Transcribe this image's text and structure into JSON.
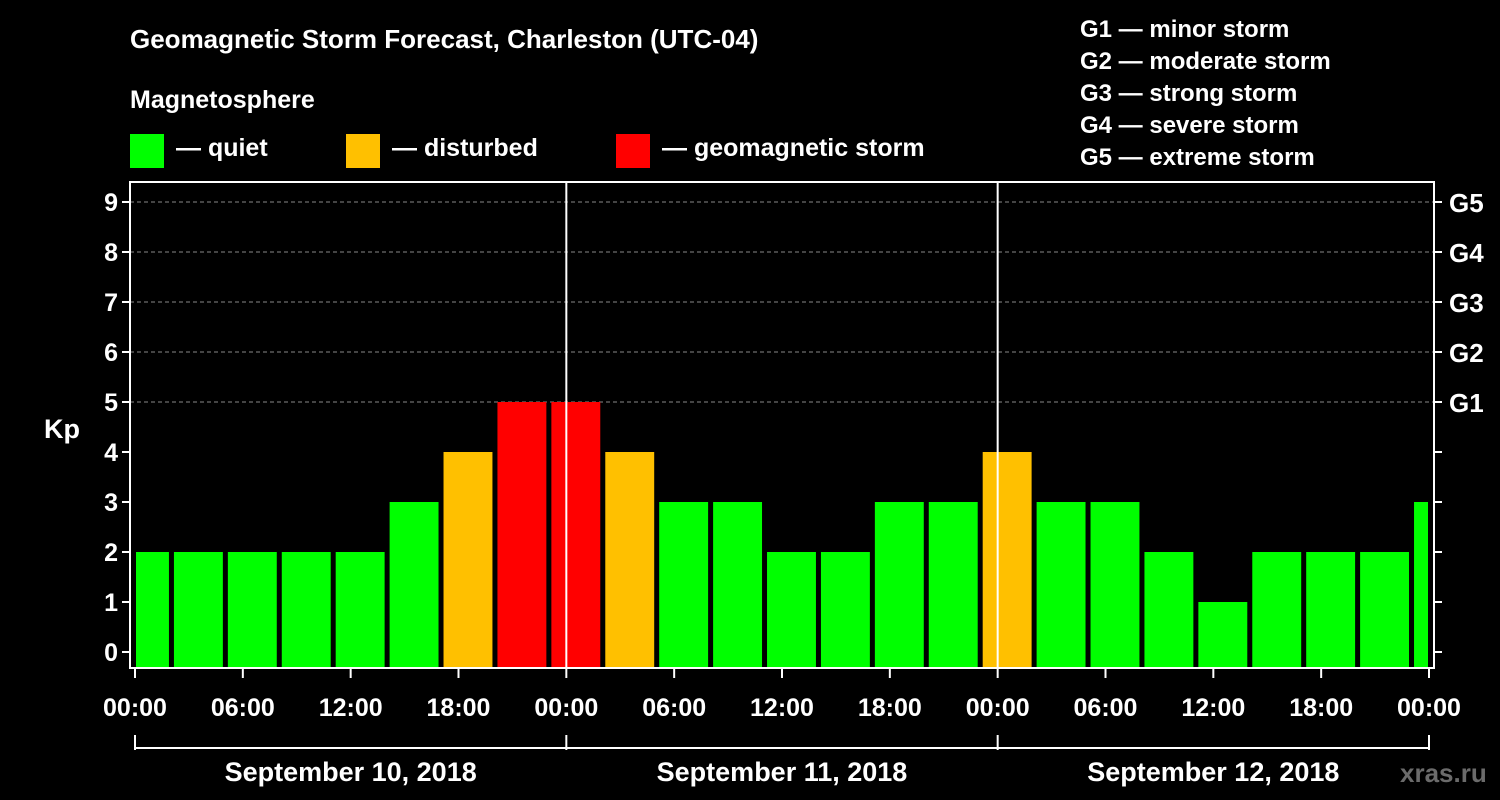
{
  "title": "Geomagnetic Storm Forecast, Charleston (UTC-04)",
  "magnetosphere": {
    "heading": "Magnetosphere",
    "items": [
      {
        "label": "— quiet",
        "color": "#00ff00"
      },
      {
        "label": "— disturbed",
        "color": "#ffc000"
      },
      {
        "label": "— geomagnetic storm",
        "color": "#ff0000"
      }
    ]
  },
  "g_scale": [
    {
      "level": "G1",
      "label": "G1 — minor storm"
    },
    {
      "level": "G2",
      "label": "G2 — moderate storm"
    },
    {
      "level": "G3",
      "label": "G3 — strong storm"
    },
    {
      "level": "G4",
      "label": "G4 — severe storm"
    },
    {
      "level": "G5",
      "label": "G5 — extreme storm"
    }
  ],
  "watermark": "xras.ru",
  "chart_data": {
    "type": "bar",
    "title": "Geomagnetic Storm Forecast, Charleston (UTC-04)",
    "ylabel": "Kp",
    "ylim": [
      0,
      9
    ],
    "y_ticks": [
      "0",
      "1",
      "2",
      "3",
      "4",
      "5",
      "6",
      "7",
      "8",
      "9"
    ],
    "right_axis": [
      {
        "kp": 5,
        "label": "G1"
      },
      {
        "kp": 6,
        "label": "G2"
      },
      {
        "kp": 7,
        "label": "G3"
      },
      {
        "kp": 8,
        "label": "G4"
      },
      {
        "kp": 9,
        "label": "G5"
      }
    ],
    "gridlines_at": [
      5,
      6,
      7,
      8,
      9
    ],
    "x_range_hours": [
      0,
      72
    ],
    "x_ticks": [
      "00:00",
      "06:00",
      "12:00",
      "18:00",
      "00:00",
      "06:00",
      "12:00",
      "18:00",
      "00:00",
      "06:00",
      "12:00",
      "18:00",
      "00:00"
    ],
    "days": [
      "September 10, 2018",
      "September 11, 2018",
      "September 12, 2018"
    ],
    "bars": [
      {
        "start": 0,
        "end": 2,
        "kp": 2,
        "color": "#00ff00"
      },
      {
        "start": 2,
        "end": 5,
        "kp": 2,
        "color": "#00ff00"
      },
      {
        "start": 5,
        "end": 8,
        "kp": 2,
        "color": "#00ff00"
      },
      {
        "start": 8,
        "end": 11,
        "kp": 2,
        "color": "#00ff00"
      },
      {
        "start": 11,
        "end": 14,
        "kp": 2,
        "color": "#00ff00"
      },
      {
        "start": 14,
        "end": 17,
        "kp": 3,
        "color": "#00ff00"
      },
      {
        "start": 17,
        "end": 20,
        "kp": 4,
        "color": "#ffc000"
      },
      {
        "start": 20,
        "end": 23,
        "kp": 5,
        "color": "#ff0000"
      },
      {
        "start": 23,
        "end": 26,
        "kp": 5,
        "color": "#ff0000"
      },
      {
        "start": 26,
        "end": 29,
        "kp": 4,
        "color": "#ffc000"
      },
      {
        "start": 29,
        "end": 32,
        "kp": 3,
        "color": "#00ff00"
      },
      {
        "start": 32,
        "end": 35,
        "kp": 3,
        "color": "#00ff00"
      },
      {
        "start": 35,
        "end": 38,
        "kp": 2,
        "color": "#00ff00"
      },
      {
        "start": 38,
        "end": 41,
        "kp": 2,
        "color": "#00ff00"
      },
      {
        "start": 41,
        "end": 44,
        "kp": 3,
        "color": "#00ff00"
      },
      {
        "start": 44,
        "end": 47,
        "kp": 3,
        "color": "#00ff00"
      },
      {
        "start": 47,
        "end": 50,
        "kp": 4,
        "color": "#ffc000"
      },
      {
        "start": 50,
        "end": 53,
        "kp": 3,
        "color": "#00ff00"
      },
      {
        "start": 53,
        "end": 56,
        "kp": 3,
        "color": "#00ff00"
      },
      {
        "start": 56,
        "end": 59,
        "kp": 2,
        "color": "#00ff00"
      },
      {
        "start": 59,
        "end": 62,
        "kp": 1,
        "color": "#00ff00"
      },
      {
        "start": 62,
        "end": 65,
        "kp": 2,
        "color": "#00ff00"
      },
      {
        "start": 65,
        "end": 68,
        "kp": 2,
        "color": "#00ff00"
      },
      {
        "start": 68,
        "end": 71,
        "kp": 2,
        "color": "#00ff00"
      },
      {
        "start": 71,
        "end": 72,
        "kp": 3,
        "color": "#00ff00"
      }
    ]
  }
}
